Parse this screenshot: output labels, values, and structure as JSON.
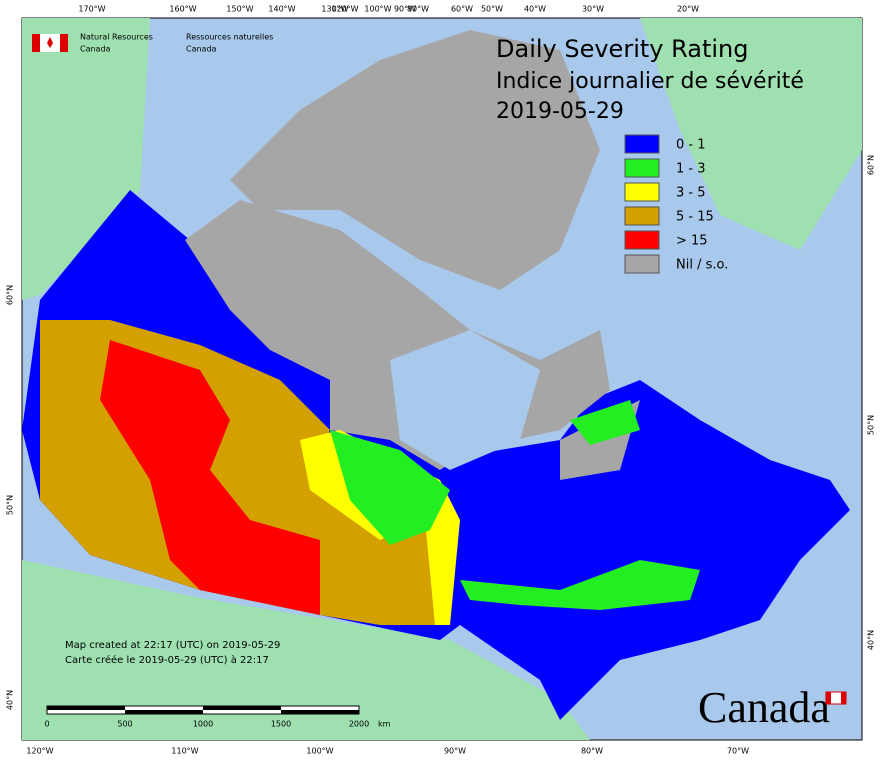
{
  "header": {
    "agency_en": [
      "Natural Resources",
      "Canada"
    ],
    "agency_fr": [
      "Ressources naturelles",
      "Canada"
    ]
  },
  "title": {
    "en": "Daily Severity Rating",
    "fr": "Indice journalier de sévérité",
    "date": "2019-05-29"
  },
  "legend": [
    {
      "label": "0 - 1",
      "color": "#0000ff"
    },
    {
      "label": "1 - 3",
      "color": "#22ee22"
    },
    {
      "label": "3 - 5",
      "color": "#ffff00"
    },
    {
      "label": "5 - 15",
      "color": "#d4a000"
    },
    {
      "label": "> 15",
      "color": "#ff0000"
    },
    {
      "label": "Nil / s.o.",
      "color": "#a6a6a6"
    }
  ],
  "top_labels": [
    "170°W",
    "160°W",
    "150°W",
    "140°W",
    "130°W",
    "120°W",
    "100°W",
    "90°W",
    "80°W",
    "60°W",
    "50°W",
    "40°W",
    "30°W",
    "20°W"
  ],
  "bottom_labels": [
    "120°W",
    "110°W",
    "100°W",
    "90°W",
    "80°W",
    "70°W"
  ],
  "left_labels": [
    "60°N",
    "50°N",
    "40°N"
  ],
  "right_labels": [
    "60°N",
    "50°N",
    "40°N"
  ],
  "footer": {
    "created_en": "Map created at 22:17 (UTC) on 2019-05-29",
    "created_fr": "Carte créée le 2019-05-29 (UTC) à 22:17"
  },
  "scale": {
    "ticks": [
      "0",
      "500",
      "1000",
      "1500",
      "2000"
    ],
    "unit": "km"
  },
  "wordmark": "Canada"
}
